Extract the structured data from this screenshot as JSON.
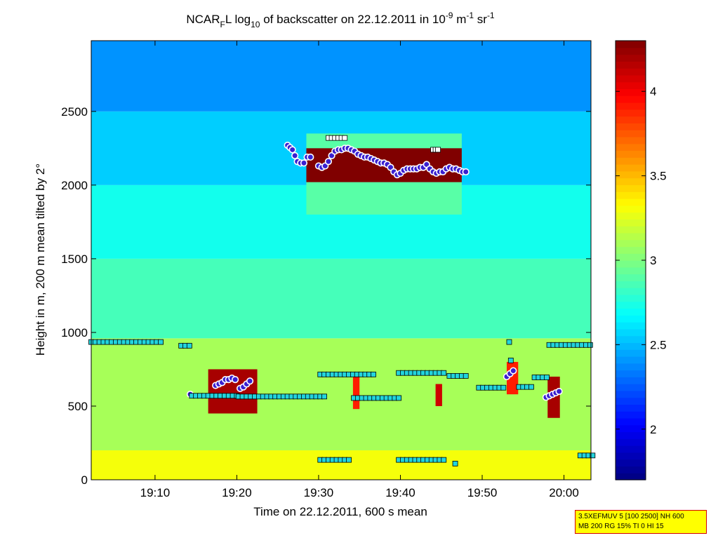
{
  "chart_data": {
    "type": "heatmap",
    "title": "NCAR_F L log_10 of backscatter on 22.12.2011 in 10^-9 m^-1 sr^-1",
    "title_parts": {
      "a": "NCAR",
      "b": "F",
      "c": "L log",
      "d": "10",
      "e": " of backscatter on 22.12.2011 in 10",
      "f": "-9",
      "g": " m",
      "h": "-1",
      "i": " sr",
      "j": "-1"
    },
    "xlabel": "Time on 22.12.2011, 600 s mean",
    "ylabel": "Height in m, 200 m mean tilted by 2°",
    "x_unit": "minutes after 19:00",
    "xlim": [
      2.2,
      63.3
    ],
    "ylim": [
      0,
      2980
    ],
    "xticks": [
      {
        "value": 10,
        "label": "19:10"
      },
      {
        "value": 20,
        "label": "19:20"
      },
      {
        "value": 30,
        "label": "19:30"
      },
      {
        "value": 40,
        "label": "19:40"
      },
      {
        "value": 50,
        "label": "19:50"
      },
      {
        "value": 60,
        "label": "20:00"
      }
    ],
    "yticks": [
      {
        "value": 0,
        "label": "0"
      },
      {
        "value": 500,
        "label": "500"
      },
      {
        "value": 1000,
        "label": "1000"
      },
      {
        "value": 1500,
        "label": "1500"
      },
      {
        "value": 2000,
        "label": "2000"
      },
      {
        "value": 2500,
        "label": "2500"
      }
    ],
    "colorbar": {
      "clim": [
        1.7,
        4.3
      ],
      "ticks": [
        {
          "value": 2,
          "label": "2"
        },
        {
          "value": 2.5,
          "label": "2.5"
        },
        {
          "value": 3,
          "label": "3"
        },
        {
          "value": 3.5,
          "label": "3.5"
        },
        {
          "value": 4,
          "label": "4"
        }
      ]
    },
    "field": {
      "background_levels": [
        {
          "y": [
            0,
            200
          ],
          "value": 3.3
        },
        {
          "y": [
            200,
            960
          ],
          "value": 3.1
        },
        {
          "y": [
            960,
            1500
          ],
          "value": 2.85
        },
        {
          "y": [
            1500,
            2000
          ],
          "value": 2.72
        },
        {
          "y": [
            2000,
            2500
          ],
          "value": 2.55
        },
        {
          "y": [
            2500,
            2980
          ],
          "value": 2.4
        }
      ],
      "cloud_regions": [
        {
          "x": [
            28.5,
            47.5
          ],
          "y": [
            1800,
            2350
          ],
          "value": 2.9
        },
        {
          "x": [
            28.5,
            47.5
          ],
          "y": [
            2020,
            2250
          ],
          "value": 4.3
        },
        {
          "x": [
            16.5,
            22.5
          ],
          "y": [
            450,
            750
          ],
          "value": 4.2
        },
        {
          "x": [
            34.2,
            35.0
          ],
          "y": [
            480,
            700
          ],
          "value": 3.9
        },
        {
          "x": [
            44.3,
            45.1
          ],
          "y": [
            500,
            650
          ],
          "value": 4.1
        },
        {
          "x": [
            53.0,
            54.4
          ],
          "y": [
            580,
            800
          ],
          "value": 3.9
        },
        {
          "x": [
            58.0,
            59.5
          ],
          "y": [
            420,
            700
          ],
          "value": 4.2
        }
      ]
    },
    "series": [
      {
        "name": "cloud_layer_detections",
        "marker": "circle",
        "points": [
          [
            26.2,
            2270
          ],
          [
            26.5,
            2255
          ],
          [
            26.8,
            2240
          ],
          [
            27.1,
            2200
          ],
          [
            27.4,
            2160
          ],
          [
            27.8,
            2150
          ],
          [
            28.2,
            2150
          ],
          [
            28.6,
            2190
          ],
          [
            29.0,
            2190
          ],
          [
            30.0,
            2130
          ],
          [
            30.4,
            2120
          ],
          [
            30.8,
            2130
          ],
          [
            31.2,
            2160
          ],
          [
            31.6,
            2200
          ],
          [
            32.0,
            2230
          ],
          [
            32.4,
            2240
          ],
          [
            32.8,
            2240
          ],
          [
            33.2,
            2250
          ],
          [
            33.6,
            2250
          ],
          [
            34.0,
            2240
          ],
          [
            34.4,
            2230
          ],
          [
            34.8,
            2210
          ],
          [
            35.2,
            2200
          ],
          [
            35.6,
            2190
          ],
          [
            36.0,
            2190
          ],
          [
            36.4,
            2180
          ],
          [
            36.8,
            2170
          ],
          [
            37.2,
            2160
          ],
          [
            37.6,
            2150
          ],
          [
            38.0,
            2150
          ],
          [
            38.4,
            2140
          ],
          [
            38.8,
            2120
          ],
          [
            39.2,
            2090
          ],
          [
            39.6,
            2070
          ],
          [
            40.0,
            2080
          ],
          [
            40.4,
            2100
          ],
          [
            40.8,
            2110
          ],
          [
            41.2,
            2110
          ],
          [
            41.6,
            2110
          ],
          [
            42.0,
            2110
          ],
          [
            42.4,
            2120
          ],
          [
            42.8,
            2120
          ],
          [
            43.2,
            2140
          ],
          [
            43.6,
            2110
          ],
          [
            44.0,
            2090
          ],
          [
            44.4,
            2080
          ],
          [
            44.8,
            2090
          ],
          [
            45.2,
            2090
          ],
          [
            45.6,
            2110
          ],
          [
            46.0,
            2120
          ],
          [
            46.4,
            2110
          ],
          [
            46.8,
            2110
          ],
          [
            47.2,
            2100
          ],
          [
            47.6,
            2090
          ],
          [
            48.0,
            2090
          ],
          [
            14.3,
            580
          ],
          [
            17.4,
            640
          ],
          [
            17.8,
            650
          ],
          [
            18.2,
            660
          ],
          [
            18.6,
            680
          ],
          [
            19.0,
            680
          ],
          [
            19.4,
            690
          ],
          [
            19.8,
            680
          ],
          [
            20.4,
            620
          ],
          [
            20.8,
            630
          ],
          [
            21.2,
            650
          ],
          [
            21.6,
            670
          ],
          [
            53.0,
            700
          ],
          [
            53.4,
            720
          ],
          [
            53.8,
            740
          ],
          [
            57.8,
            560
          ],
          [
            58.2,
            570
          ],
          [
            58.6,
            580
          ],
          [
            59.0,
            590
          ],
          [
            59.4,
            600
          ]
        ]
      },
      {
        "name": "layer_boundaries",
        "marker": "square",
        "segments": [
          {
            "x": [
              2.2,
              10.5
            ],
            "y": 935,
            "step": 0.5
          },
          {
            "x": [
              13.2,
              14.1
            ],
            "y": 910,
            "step": 0.5
          },
          {
            "x": [
              14.5,
              20.2
            ],
            "y": 570,
            "step": 0.5
          },
          {
            "x": [
              20.2,
              30.5
            ],
            "y": 565,
            "step": 0.5
          },
          {
            "x": [
              30.2,
              36.6
            ],
            "y": 715,
            "step": 0.5
          },
          {
            "x": [
              34.3,
              39.8
            ],
            "y": 555,
            "step": 0.5
          },
          {
            "x": [
              39.8,
              45.2
            ],
            "y": 725,
            "step": 0.5
          },
          {
            "x": [
              46.0,
              48.2
            ],
            "y": 705,
            "step": 0.5
          },
          {
            "x": [
              49.6,
              52.4
            ],
            "y": 625,
            "step": 0.5
          },
          {
            "x": [
              54.5,
              56.2
            ],
            "y": 630,
            "step": 0.5
          },
          {
            "x": [
              56.4,
              57.8
            ],
            "y": 695,
            "step": 0.5
          },
          {
            "x": [
              58.2,
              63.1
            ],
            "y": 915,
            "step": 0.5
          },
          {
            "x": [
              30.2,
              33.5
            ],
            "y": 135,
            "step": 0.5
          },
          {
            "x": [
              39.8,
              45.2
            ],
            "y": 135,
            "step": 0.5
          },
          {
            "x": [
              62.0,
              63.3
            ],
            "y": 165,
            "step": 0.5
          },
          {
            "x": [
              53.3,
              53.3
            ],
            "y": 935,
            "step": 0.5
          },
          {
            "x": [
              53.5,
              53.5
            ],
            "y": 810,
            "step": 0.5
          },
          {
            "x": [
              46.7,
              46.7
            ],
            "y": 110,
            "step": 0.5
          },
          {
            "x": [
              31.2,
              33.2
            ],
            "y": 2320,
            "step": 0.4
          },
          {
            "x": [
              44.0,
              44.6
            ],
            "y": 2240,
            "step": 0.3
          }
        ]
      }
    ]
  },
  "info_box": {
    "line1": "3.5XEFMUV 5 [100 2500] NH 600",
    "line2": "MB 200 RG 15% TI 0 HI 15"
  }
}
